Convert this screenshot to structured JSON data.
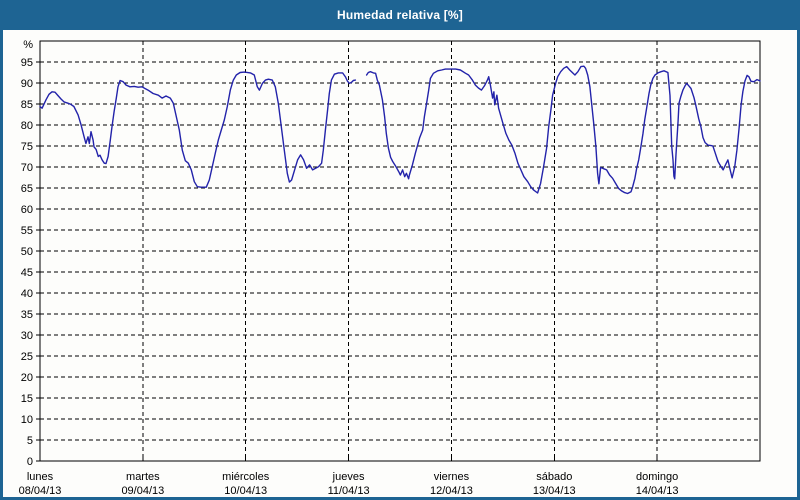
{
  "title": "Humedad relativa [%]",
  "colors": {
    "titlebar_bg": "#1E6493",
    "title_text": "#FFFFFF",
    "frame": "#1E6493",
    "background": "#FDFDFB",
    "grid": "#000000",
    "axis": "#000000",
    "line": "#2323AA"
  },
  "chart_data": {
    "type": "line",
    "title": "Humedad relativa [%]",
    "y_unit_label": "%",
    "ylim": [
      0,
      100
    ],
    "ytick_step": 5,
    "yticks": [
      0,
      5,
      10,
      15,
      20,
      25,
      30,
      35,
      40,
      45,
      50,
      55,
      60,
      65,
      70,
      75,
      80,
      85,
      90,
      95
    ],
    "grid": "dashed",
    "legend": "none",
    "x_hours_total": 168,
    "x_days": [
      {
        "name": "lunes",
        "date": "08/04/13"
      },
      {
        "name": "martes",
        "date": "09/04/13"
      },
      {
        "name": "miércoles",
        "date": "10/04/13"
      },
      {
        "name": "jueves",
        "date": "11/04/13"
      },
      {
        "name": "viernes",
        "date": "12/04/13"
      },
      {
        "name": "sábado",
        "date": "13/04/13"
      },
      {
        "name": "domingo",
        "date": "14/04/13"
      }
    ],
    "series": [
      {
        "name": "Humedad relativa",
        "unit": "%",
        "note": "points are [hours since Mon 08/04/13 00:00, relative humidity %]; null = data gap",
        "points": [
          [
            0.0,
            84.4
          ],
          [
            0.5,
            84.0
          ],
          [
            1.4,
            86.0
          ],
          [
            2.1,
            87.3
          ],
          [
            2.8,
            87.9
          ],
          [
            3.5,
            87.8
          ],
          [
            4.2,
            87.0
          ],
          [
            4.9,
            86.2
          ],
          [
            5.6,
            85.5
          ],
          [
            6.5,
            85.2
          ],
          [
            7.2,
            84.9
          ],
          [
            7.9,
            84.4
          ],
          [
            8.9,
            82.4
          ],
          [
            9.6,
            80.0
          ],
          [
            10.3,
            77.2
          ],
          [
            10.7,
            75.6
          ],
          [
            11.2,
            77.2
          ],
          [
            11.5,
            75.6
          ],
          [
            11.9,
            78.4
          ],
          [
            12.4,
            76.4
          ],
          [
            12.6,
            74.8
          ],
          [
            13.1,
            74.2
          ],
          [
            13.6,
            72.5
          ],
          [
            14.0,
            72.8
          ],
          [
            14.5,
            71.7
          ],
          [
            15.0,
            70.9
          ],
          [
            15.4,
            70.8
          ],
          [
            15.9,
            72.5
          ],
          [
            16.4,
            76.4
          ],
          [
            16.8,
            79.6
          ],
          [
            17.3,
            83.2
          ],
          [
            17.8,
            86.4
          ],
          [
            18.2,
            89.1
          ],
          [
            18.7,
            90.6
          ],
          [
            19.4,
            90.3
          ],
          [
            20.1,
            89.5
          ],
          [
            21.0,
            89.1
          ],
          [
            22.0,
            89.2
          ],
          [
            22.9,
            89.0
          ],
          [
            23.8,
            89.1
          ],
          [
            24.5,
            88.7
          ],
          [
            25.2,
            88.3
          ],
          [
            26.4,
            87.5
          ],
          [
            27.6,
            87.1
          ],
          [
            28.5,
            86.4
          ],
          [
            29.4,
            86.9
          ],
          [
            30.4,
            86.4
          ],
          [
            31.1,
            85.2
          ],
          [
            31.8,
            82.0
          ],
          [
            32.5,
            78.8
          ],
          [
            33.2,
            74.0
          ],
          [
            33.9,
            71.5
          ],
          [
            34.6,
            70.9
          ],
          [
            35.3,
            69.3
          ],
          [
            36.0,
            66.5
          ],
          [
            36.7,
            65.3
          ],
          [
            37.6,
            65.2
          ],
          [
            38.8,
            65.2
          ],
          [
            39.5,
            66.9
          ],
          [
            40.2,
            70.1
          ],
          [
            40.9,
            73.3
          ],
          [
            41.6,
            76.4
          ],
          [
            42.3,
            78.8
          ],
          [
            43.0,
            81.2
          ],
          [
            43.7,
            84.4
          ],
          [
            44.4,
            88.3
          ],
          [
            45.1,
            90.7
          ],
          [
            45.8,
            91.9
          ],
          [
            46.7,
            92.5
          ],
          [
            47.7,
            92.6
          ],
          [
            49.1,
            92.4
          ],
          [
            50.0,
            91.9
          ],
          [
            50.7,
            89.1
          ],
          [
            51.2,
            88.3
          ],
          [
            51.9,
            89.9
          ],
          [
            52.6,
            90.7
          ],
          [
            53.3,
            90.9
          ],
          [
            54.2,
            90.7
          ],
          [
            54.9,
            89.1
          ],
          [
            55.6,
            85.2
          ],
          [
            56.3,
            79.6
          ],
          [
            57.0,
            74.0
          ],
          [
            57.7,
            68.5
          ],
          [
            58.2,
            66.4
          ],
          [
            58.7,
            66.9
          ],
          [
            59.4,
            69.3
          ],
          [
            60.1,
            71.7
          ],
          [
            60.8,
            72.9
          ],
          [
            61.5,
            71.7
          ],
          [
            62.2,
            69.7
          ],
          [
            62.9,
            70.5
          ],
          [
            63.6,
            69.3
          ],
          [
            64.3,
            69.7
          ],
          [
            65.0,
            70.1
          ],
          [
            65.7,
            70.9
          ],
          [
            66.1,
            74.0
          ],
          [
            66.6,
            78.8
          ],
          [
            67.1,
            83.6
          ],
          [
            67.5,
            87.5
          ],
          [
            68.0,
            90.7
          ],
          [
            68.7,
            92.1
          ],
          [
            69.6,
            92.4
          ],
          [
            70.6,
            92.4
          ],
          [
            71.3,
            91.4
          ],
          [
            71.7,
            90.5
          ],
          [
            72.2,
            89.9
          ],
          [
            72.7,
            90.2
          ],
          [
            73.1,
            90.6
          ],
          [
            73.6,
            90.7
          ],
          [
            74.5,
            null
          ],
          [
            76.2,
            91.9
          ],
          [
            76.6,
            92.5
          ],
          [
            77.1,
            92.7
          ],
          [
            77.8,
            92.4
          ],
          [
            78.3,
            92.3
          ],
          [
            78.7,
            90.7
          ],
          [
            79.2,
            89.5
          ],
          [
            79.9,
            86.0
          ],
          [
            80.4,
            82.0
          ],
          [
            80.8,
            78.0
          ],
          [
            81.3,
            74.5
          ],
          [
            81.8,
            72.3
          ],
          [
            82.3,
            71.3
          ],
          [
            83.0,
            70.2
          ],
          [
            83.7,
            68.9
          ],
          [
            84.1,
            68.1
          ],
          [
            84.6,
            69.3
          ],
          [
            85.1,
            67.7
          ],
          [
            85.5,
            68.5
          ],
          [
            86.0,
            67.2
          ],
          [
            86.2,
            68.1
          ],
          [
            86.9,
            70.5
          ],
          [
            87.6,
            73.3
          ],
          [
            88.1,
            75.2
          ],
          [
            88.6,
            77.0
          ],
          [
            89.3,
            78.8
          ],
          [
            89.7,
            82.0
          ],
          [
            90.2,
            85.2
          ],
          [
            90.7,
            88.3
          ],
          [
            91.1,
            91.1
          ],
          [
            91.8,
            92.3
          ],
          [
            92.8,
            92.9
          ],
          [
            93.7,
            93.1
          ],
          [
            94.6,
            93.3
          ],
          [
            95.8,
            93.3
          ],
          [
            97.0,
            93.3
          ],
          [
            98.1,
            93.1
          ],
          [
            99.3,
            92.3
          ],
          [
            100.0,
            91.9
          ],
          [
            100.9,
            90.7
          ],
          [
            101.6,
            89.5
          ],
          [
            102.3,
            88.8
          ],
          [
            103.0,
            88.3
          ],
          [
            103.7,
            89.3
          ],
          [
            104.4,
            90.7
          ],
          [
            104.7,
            91.5
          ],
          [
            105.1,
            89.5
          ],
          [
            105.6,
            86.4
          ],
          [
            105.9,
            87.9
          ],
          [
            106.1,
            84.8
          ],
          [
            106.6,
            87.1
          ],
          [
            107.0,
            84.0
          ],
          [
            108.0,
            80.4
          ],
          [
            108.7,
            78.0
          ],
          [
            109.4,
            76.4
          ],
          [
            110.1,
            75.2
          ],
          [
            110.8,
            73.3
          ],
          [
            111.5,
            70.9
          ],
          [
            112.2,
            69.3
          ],
          [
            112.9,
            67.7
          ],
          [
            113.8,
            66.5
          ],
          [
            114.5,
            65.3
          ],
          [
            115.2,
            64.5
          ],
          [
            116.1,
            63.8
          ],
          [
            116.8,
            66.1
          ],
          [
            117.5,
            70.1
          ],
          [
            118.2,
            74.5
          ],
          [
            118.7,
            79.6
          ],
          [
            119.2,
            83.6
          ],
          [
            119.6,
            87.1
          ],
          [
            120.3,
            89.9
          ],
          [
            120.8,
            91.5
          ],
          [
            121.5,
            92.7
          ],
          [
            122.2,
            93.5
          ],
          [
            122.9,
            93.9
          ],
          [
            123.6,
            93.1
          ],
          [
            124.3,
            92.4
          ],
          [
            124.8,
            91.9
          ],
          [
            125.5,
            92.7
          ],
          [
            126.2,
            93.9
          ],
          [
            126.9,
            94.0
          ],
          [
            127.3,
            93.5
          ],
          [
            127.8,
            91.9
          ],
          [
            128.3,
            89.1
          ],
          [
            128.7,
            85.2
          ],
          [
            129.2,
            80.4
          ],
          [
            129.7,
            74.8
          ],
          [
            130.1,
            68.5
          ],
          [
            130.4,
            66.0
          ],
          [
            130.8,
            69.9
          ],
          [
            131.5,
            69.6
          ],
          [
            132.2,
            69.3
          ],
          [
            132.9,
            68.1
          ],
          [
            133.6,
            67.3
          ],
          [
            134.3,
            66.1
          ],
          [
            135.0,
            64.9
          ],
          [
            135.7,
            64.3
          ],
          [
            136.4,
            63.9
          ],
          [
            137.1,
            63.7
          ],
          [
            137.9,
            64.1
          ],
          [
            138.3,
            65.3
          ],
          [
            138.8,
            67.3
          ],
          [
            139.2,
            69.6
          ],
          [
            139.7,
            71.7
          ],
          [
            140.2,
            74.8
          ],
          [
            140.7,
            78.0
          ],
          [
            141.1,
            81.2
          ],
          [
            141.6,
            84.4
          ],
          [
            142.1,
            87.5
          ],
          [
            142.5,
            89.5
          ],
          [
            143.0,
            91.1
          ],
          [
            143.5,
            91.9
          ],
          [
            144.2,
            92.4
          ],
          [
            144.9,
            92.7
          ],
          [
            145.6,
            92.9
          ],
          [
            146.5,
            92.5
          ],
          [
            147.0,
            87.0
          ],
          [
            147.4,
            75.0
          ],
          [
            147.7,
            71.7
          ],
          [
            147.9,
            67.8
          ],
          [
            148.1,
            67.2
          ],
          [
            148.4,
            73.0
          ],
          [
            148.9,
            81.0
          ],
          [
            149.1,
            85.2
          ],
          [
            149.5,
            86.7
          ],
          [
            150.0,
            88.3
          ],
          [
            150.5,
            89.3
          ],
          [
            150.9,
            89.9
          ],
          [
            151.4,
            89.3
          ],
          [
            151.9,
            88.7
          ],
          [
            152.6,
            86.5
          ],
          [
            153.0,
            84.8
          ],
          [
            153.7,
            81.5
          ],
          [
            154.2,
            79.6
          ],
          [
            154.7,
            77.0
          ],
          [
            155.2,
            75.8
          ],
          [
            155.9,
            75.2
          ],
          [
            156.6,
            75.1
          ],
          [
            157.0,
            75.0
          ],
          [
            157.5,
            73.5
          ],
          [
            158.2,
            71.3
          ],
          [
            158.9,
            70.1
          ],
          [
            159.4,
            69.3
          ],
          [
            160.1,
            70.8
          ],
          [
            160.5,
            71.7
          ],
          [
            161.0,
            69.5
          ],
          [
            161.5,
            67.4
          ],
          [
            162.1,
            70.0
          ],
          [
            162.6,
            74.0
          ],
          [
            163.1,
            79.0
          ],
          [
            163.6,
            84.8
          ],
          [
            164.0,
            88.0
          ],
          [
            164.5,
            90.5
          ],
          [
            165.0,
            91.8
          ],
          [
            165.4,
            91.5
          ],
          [
            165.9,
            90.4
          ],
          [
            166.6,
            90.3
          ],
          [
            167.3,
            90.8
          ],
          [
            168.0,
            90.5
          ]
        ]
      }
    ]
  }
}
